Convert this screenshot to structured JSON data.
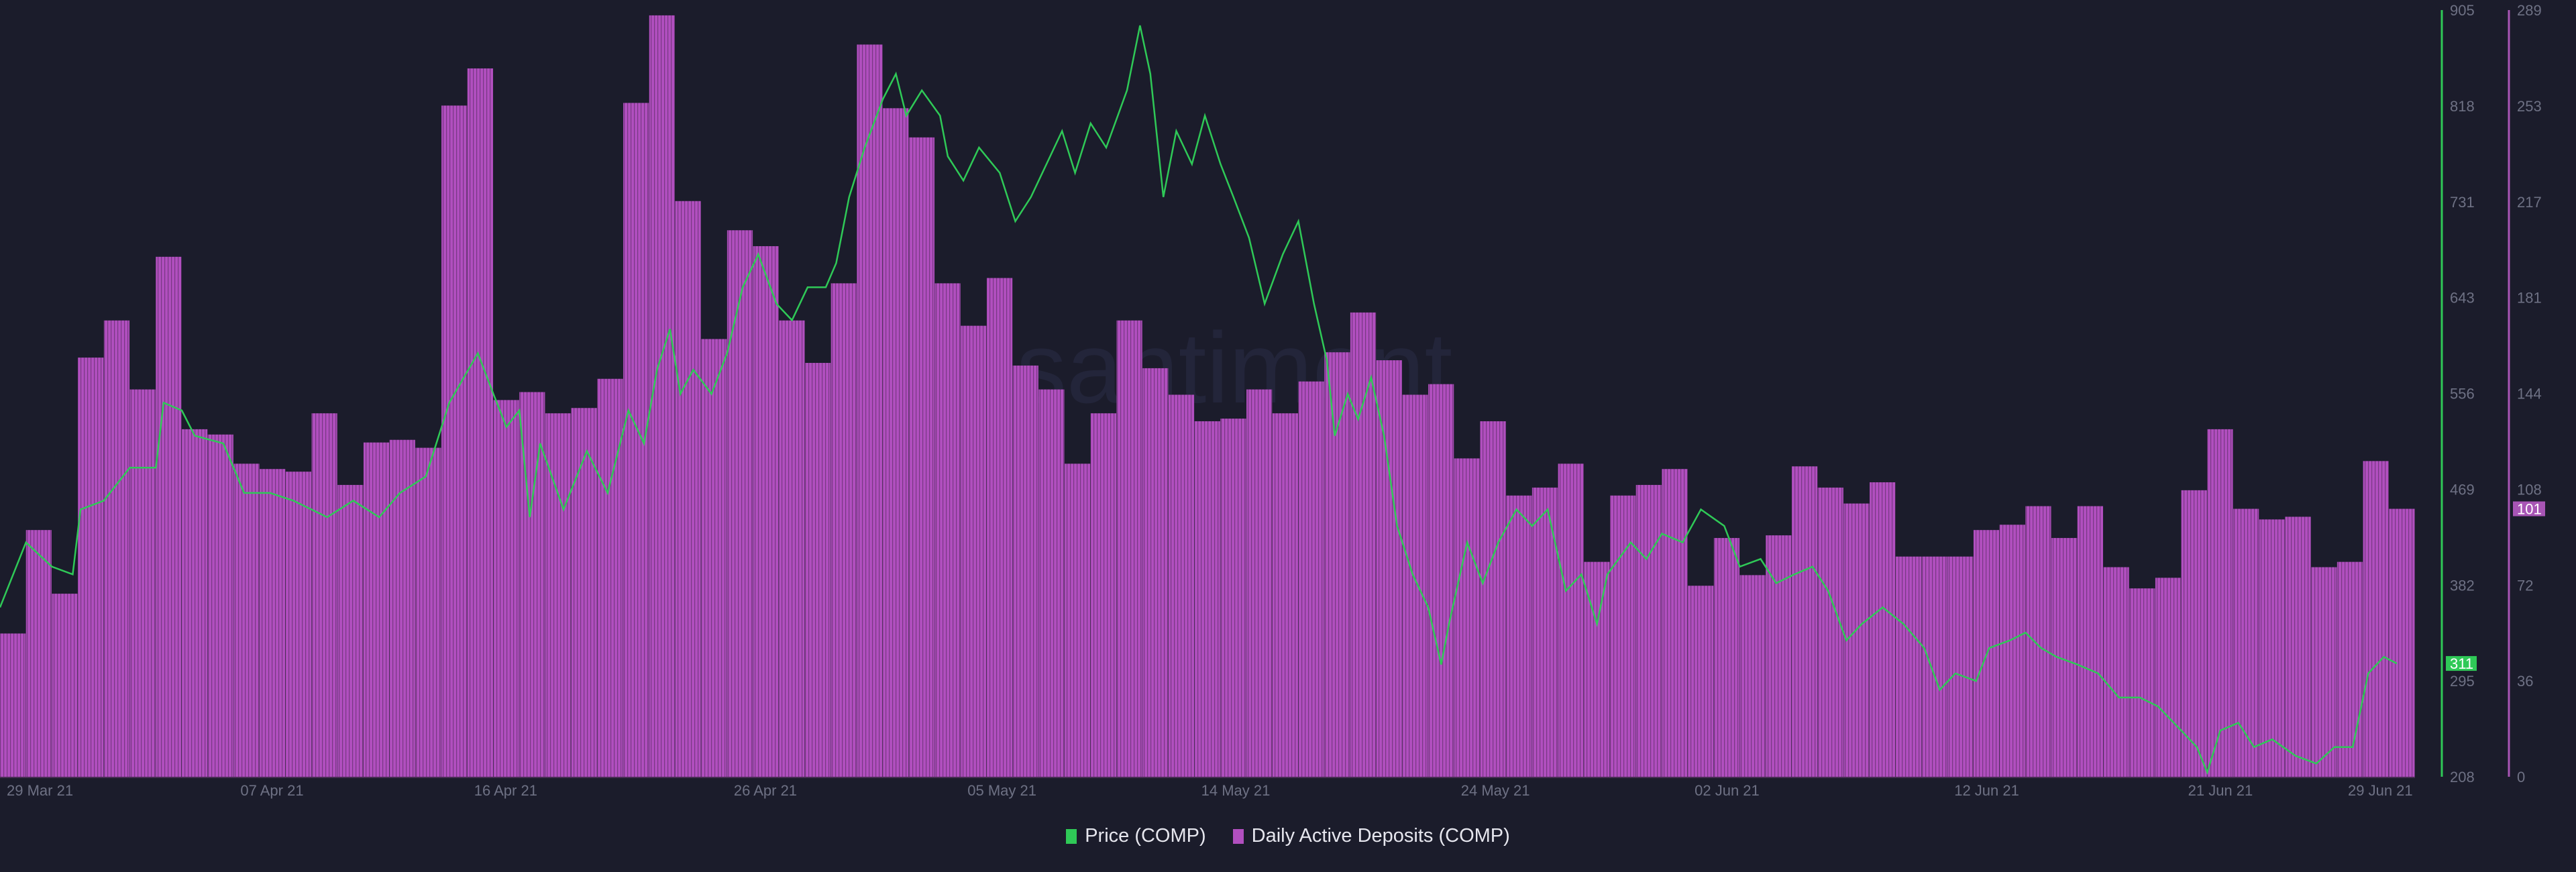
{
  "chart_data": {
    "type": "bar+line",
    "title": "",
    "x_tick_labels": [
      "29 Mar 21",
      "07 Apr 21",
      "16 Apr 21",
      "26 Apr 21",
      "05 May 21",
      "14 May 21",
      "24 May 21",
      "02 Jun 21",
      "12 Jun 21",
      "21 Jun 21",
      "29 Jun 21"
    ],
    "x_tick_days": [
      0,
      9,
      18,
      28,
      37,
      46,
      56,
      65,
      75,
      84,
      92
    ],
    "price_axis": {
      "ticks": [
        "905",
        "818",
        "731",
        "643",
        "556",
        "469",
        "382",
        "295",
        "208"
      ],
      "range": [
        208,
        905
      ],
      "current_label": "311",
      "current_value": 311
    },
    "deposits_axis": {
      "ticks": [
        "289",
        "253",
        "217",
        "181",
        "144",
        "108",
        "72",
        "36",
        "0"
      ],
      "range": [
        0,
        289
      ],
      "current_label": "101",
      "current_value": 101
    },
    "series": [
      {
        "name": "Daily Active Deposits (COMP)",
        "type": "bar",
        "color": "#b14fbf",
        "values": [
          54,
          93,
          69,
          158,
          172,
          146,
          196,
          131,
          129,
          118,
          116,
          115,
          137,
          110,
          126,
          127,
          124,
          253,
          267,
          142,
          145,
          137,
          139,
          150,
          254,
          287,
          217,
          165,
          206,
          200,
          172,
          156,
          186,
          276,
          252,
          241,
          186,
          170,
          188,
          155,
          146,
          118,
          137,
          172,
          154,
          144,
          134,
          135,
          146,
          137,
          149,
          160,
          175,
          157,
          144,
          148,
          120,
          134,
          106,
          109,
          118,
          81,
          106,
          110,
          116,
          72,
          90,
          76,
          91,
          117,
          109,
          103,
          111,
          83,
          83,
          83,
          93,
          95,
          102,
          90,
          102,
          79,
          71,
          75,
          108,
          131,
          101,
          97,
          98,
          79,
          81,
          119,
          101
        ]
      },
      {
        "name": "Price (COMP)",
        "type": "line",
        "color": "#2fc957",
        "points": [
          [
            0,
            362
          ],
          [
            1.0,
            421
          ],
          [
            2.0,
            399
          ],
          [
            2.8,
            392
          ],
          [
            3.1,
            451
          ],
          [
            4.0,
            459
          ],
          [
            5.0,
            489
          ],
          [
            6.0,
            489
          ],
          [
            6.3,
            548
          ],
          [
            7.0,
            541
          ],
          [
            7.5,
            518
          ],
          [
            8.6,
            511
          ],
          [
            9.4,
            466
          ],
          [
            10.4,
            466
          ],
          [
            11.3,
            459
          ],
          [
            12.6,
            444
          ],
          [
            13.6,
            459
          ],
          [
            14.6,
            444
          ],
          [
            15.4,
            466
          ],
          [
            16.4,
            481
          ],
          [
            17.3,
            548
          ],
          [
            18.4,
            593
          ],
          [
            19.0,
            556
          ],
          [
            19.5,
            526
          ],
          [
            20.0,
            541
          ],
          [
            20.4,
            444
          ],
          [
            20.8,
            511
          ],
          [
            21.7,
            451
          ],
          [
            22.6,
            504
          ],
          [
            23.4,
            466
          ],
          [
            24.2,
            541
          ],
          [
            24.8,
            511
          ],
          [
            25.3,
            578
          ],
          [
            25.8,
            615
          ],
          [
            26.2,
            556
          ],
          [
            26.7,
            578
          ],
          [
            27.4,
            556
          ],
          [
            28.0,
            593
          ],
          [
            28.6,
            653
          ],
          [
            29.2,
            683
          ],
          [
            29.9,
            638
          ],
          [
            30.5,
            623
          ],
          [
            31.1,
            653
          ],
          [
            31.8,
            653
          ],
          [
            32.2,
            675
          ],
          [
            32.7,
            735
          ],
          [
            33.3,
            780
          ],
          [
            34.0,
            824
          ],
          [
            34.5,
            847
          ],
          [
            34.9,
            809
          ],
          [
            35.5,
            832
          ],
          [
            36.2,
            809
          ],
          [
            36.5,
            772
          ],
          [
            37.1,
            750
          ],
          [
            37.7,
            780
          ],
          [
            38.5,
            757
          ],
          [
            39.1,
            713
          ],
          [
            39.7,
            735
          ],
          [
            40.3,
            765
          ],
          [
            40.9,
            795
          ],
          [
            41.4,
            757
          ],
          [
            42.0,
            802
          ],
          [
            42.6,
            780
          ],
          [
            43.4,
            832
          ],
          [
            43.9,
            891
          ],
          [
            44.3,
            847
          ],
          [
            44.8,
            735
          ],
          [
            45.3,
            795
          ],
          [
            45.9,
            765
          ],
          [
            46.4,
            809
          ],
          [
            47.0,
            765
          ],
          [
            47.5,
            735
          ],
          [
            48.1,
            698
          ],
          [
            48.7,
            638
          ],
          [
            49.4,
            683
          ],
          [
            50.0,
            713
          ],
          [
            50.6,
            638
          ],
          [
            51.1,
            586
          ],
          [
            51.4,
            518
          ],
          [
            51.9,
            556
          ],
          [
            52.3,
            533
          ],
          [
            52.8,
            571
          ],
          [
            53.3,
            518
          ],
          [
            53.8,
            436
          ],
          [
            54.4,
            392
          ],
          [
            55.0,
            362
          ],
          [
            55.5,
            310
          ],
          [
            55.8,
            347
          ],
          [
            56.5,
            421
          ],
          [
            57.1,
            384
          ],
          [
            57.7,
            421
          ],
          [
            58.4,
            451
          ],
          [
            59.0,
            436
          ],
          [
            59.6,
            451
          ],
          [
            60.3,
            377
          ],
          [
            60.9,
            392
          ],
          [
            61.5,
            347
          ],
          [
            61.9,
            392
          ],
          [
            62.8,
            421
          ],
          [
            63.4,
            406
          ],
          [
            64.0,
            429
          ],
          [
            64.8,
            421
          ],
          [
            65.5,
            451
          ],
          [
            66.4,
            436
          ],
          [
            67.0,
            399
          ],
          [
            67.8,
            406
          ],
          [
            68.4,
            384
          ],
          [
            69.1,
            392
          ],
          [
            69.8,
            399
          ],
          [
            70.4,
            377
          ],
          [
            71.1,
            332
          ],
          [
            71.7,
            347
          ],
          [
            72.5,
            362
          ],
          [
            73.3,
            347
          ],
          [
            74.1,
            325
          ],
          [
            74.7,
            287
          ],
          [
            75.3,
            302
          ],
          [
            76.1,
            295
          ],
          [
            76.6,
            325
          ],
          [
            77.4,
            332
          ],
          [
            78.0,
            339
          ],
          [
            78.6,
            325
          ],
          [
            79.2,
            317
          ],
          [
            80.0,
            310
          ],
          [
            80.8,
            302
          ],
          [
            81.6,
            280
          ],
          [
            82.4,
            280
          ],
          [
            83.1,
            272
          ],
          [
            84.0,
            250
          ],
          [
            84.6,
            235
          ],
          [
            85.0,
            212
          ],
          [
            85.5,
            250
          ],
          [
            86.2,
            257
          ],
          [
            86.8,
            235
          ],
          [
            87.5,
            242
          ],
          [
            88.4,
            227
          ],
          [
            89.2,
            220
          ],
          [
            89.9,
            235
          ],
          [
            90.6,
            235
          ],
          [
            91.2,
            302
          ],
          [
            91.8,
            317
          ],
          [
            92.3,
            311
          ]
        ]
      }
    ],
    "legend": {
      "position": "bottom-center",
      "items": [
        "Price (COMP)",
        "Daily Active Deposits (COMP)"
      ]
    },
    "grid": false
  }
}
